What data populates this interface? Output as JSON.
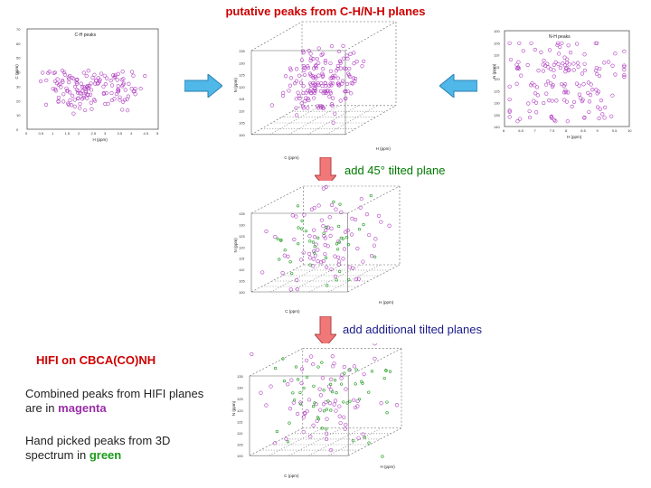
{
  "header": {
    "title": "putative peaks from C-H/N-H planes"
  },
  "plot_left": {
    "title": "C-H peaks",
    "xlabel": "H (ppm)",
    "ylabel": "C (ppm)",
    "x_ticks": [
      "0",
      "0.5",
      "1",
      "1.5",
      "2",
      "2.5",
      "3",
      "3.5",
      "4",
      "4.5",
      "5"
    ],
    "y_ticks": [
      "70",
      "60",
      "50",
      "40",
      "30",
      "20",
      "10",
      "0"
    ]
  },
  "plot_right": {
    "title": "N-H peaks",
    "xlabel": "H (ppm)",
    "ylabel": "N (ppm)",
    "x_ticks": [
      "6",
      "6.5",
      "7",
      "7.5",
      "8",
      "8.5",
      "9",
      "9.5",
      "10"
    ],
    "y_ticks": [
      "100",
      "105",
      "110",
      "115",
      "120",
      "125",
      "130",
      "135",
      "140"
    ]
  },
  "cube_top": {
    "xlabel": "C (ppm)",
    "ylabel": "N (ppm)",
    "zlabel": "H (ppm)",
    "z_ticks": [
      "135",
      "130",
      "125",
      "120",
      "115",
      "110",
      "105",
      "100"
    ]
  },
  "step1": {
    "label": "add 45° tilted plane"
  },
  "cube_mid": {
    "xlabel": "C (ppm)",
    "ylabel": "N (ppm)",
    "zlabel": "H (ppm)",
    "z_ticks": [
      "135",
      "130",
      "125",
      "120",
      "115",
      "110",
      "105",
      "100"
    ]
  },
  "step2": {
    "label": "add additional tilted planes"
  },
  "cube_bottom": {
    "xlabel": "C (ppm)",
    "ylabel": "N (ppm)",
    "zlabel": "H (ppm)",
    "z_ticks": [
      "135",
      "130",
      "125",
      "120",
      "115",
      "110",
      "105",
      "100"
    ]
  },
  "legend": {
    "heading": "HIFI on CBCA(CO)NH",
    "line1_prefix": "Combined peaks from HIFI planes are in",
    "line1_color_word": "magenta",
    "line2_prefix": "Hand picked peaks from 3D spectrum in",
    "line2_color_word": "green"
  },
  "colors": {
    "title_red": "#cc0000",
    "magenta": "#b040c0",
    "green": "#1a9a1a",
    "arrow_cyan": "#4fb8e8",
    "arrow_pink": "#f07878"
  }
}
